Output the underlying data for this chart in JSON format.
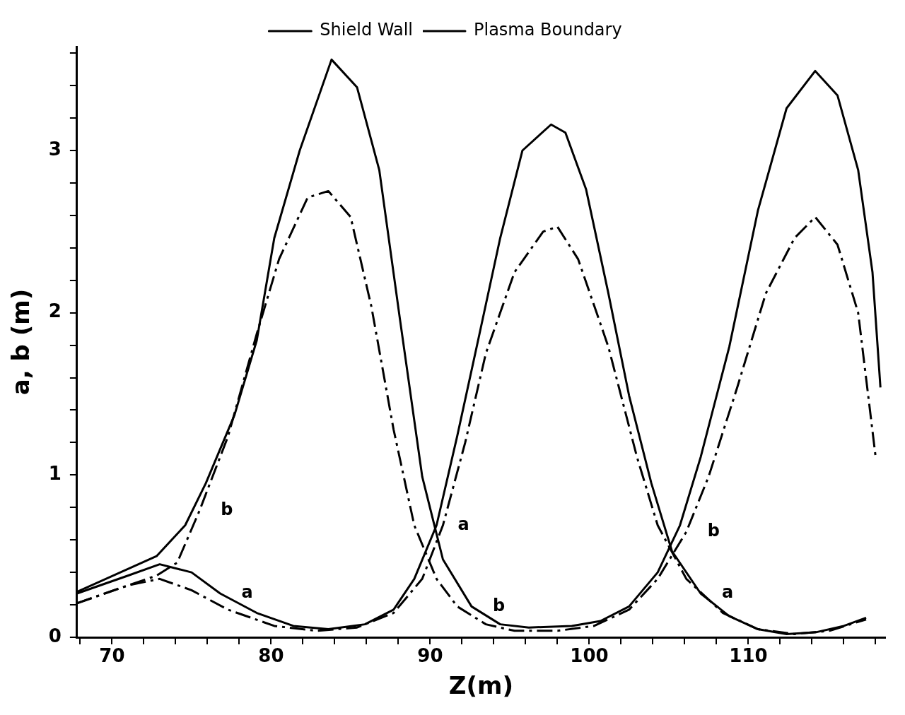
{
  "chart_data": {
    "type": "line",
    "xlabel": "Z(m)",
    "ylabel": "a, b (m)",
    "xlim": [
      67.8,
      118.6
    ],
    "ylim": [
      0,
      3.64
    ],
    "xticks": [
      {
        "value": 68,
        "label": null
      },
      70,
      {
        "value": 72,
        "label": null
      },
      {
        "value": 74,
        "label": null
      },
      {
        "value": 76,
        "label": null
      },
      {
        "value": 78,
        "label": null
      },
      80,
      {
        "value": 82,
        "label": null
      },
      {
        "value": 84,
        "label": null
      },
      {
        "value": 86,
        "label": null
      },
      {
        "value": 88,
        "label": null
      },
      90,
      {
        "value": 92,
        "label": null
      },
      {
        "value": 94,
        "label": null
      },
      {
        "value": 96,
        "label": null
      },
      {
        "value": 98,
        "label": null
      },
      100,
      {
        "value": 102,
        "label": null
      },
      {
        "value": 104,
        "label": null
      },
      {
        "value": 106,
        "label": null
      },
      {
        "value": 108,
        "label": null
      },
      110,
      {
        "value": 112,
        "label": null
      },
      {
        "value": 114,
        "label": null
      },
      {
        "value": 116,
        "label": null
      },
      {
        "value": 118,
        "label": null
      }
    ],
    "yticks": [
      0,
      {
        "value": 0.2,
        "label": null
      },
      {
        "value": 0.4,
        "label": null
      },
      {
        "value": 0.6,
        "label": null
      },
      {
        "value": 0.8,
        "label": null
      },
      1,
      {
        "value": 1.2,
        "label": null
      },
      {
        "value": 1.4,
        "label": null
      },
      {
        "value": 1.6,
        "label": null
      },
      {
        "value": 1.8,
        "label": null
      },
      2,
      {
        "value": 2.2,
        "label": null
      },
      {
        "value": 2.4,
        "label": null
      },
      {
        "value": 2.6,
        "label": null
      },
      {
        "value": 2.8,
        "label": null
      },
      3,
      {
        "value": 3.2,
        "label": null
      },
      {
        "value": 3.4,
        "label": null
      },
      {
        "value": 3.6,
        "label": null
      }
    ],
    "grid": false,
    "legend": "top right",
    "marker": "none",
    "series": [
      {
        "name": "Shield Wall",
        "color": "#000000",
        "line_style": "solid",
        "x": [
          67.8,
          72.8,
          74.6,
          75.9,
          77.7,
          79.1,
          80.2,
          81.8,
          83.8,
          85.4,
          86.8,
          88.1,
          89.5,
          90.8,
          92.6,
          94.4,
          96.2,
          98.9,
          100.7,
          102.5,
          104.3,
          105.7,
          107,
          108.8,
          110.6,
          112.4,
          114.2,
          115.6,
          116.9,
          117.8,
          118.3
        ],
        "values": [
          0.28,
          0.5,
          0.69,
          0.95,
          1.37,
          1.83,
          2.46,
          3.0,
          3.56,
          3.39,
          2.88,
          1.96,
          0.99,
          0.48,
          0.19,
          0.08,
          0.06,
          0.07,
          0.1,
          0.19,
          0.4,
          0.69,
          1.11,
          1.79,
          2.63,
          3.26,
          3.49,
          3.34,
          2.88,
          2.25,
          1.54
        ]
      },
      {
        "color": "#000000",
        "line_style": "solid",
        "x": [
          67.8,
          71,
          73,
          75,
          76.8,
          79.1,
          81.4,
          83.6,
          85.9,
          87.7,
          89,
          90.4,
          91.7,
          93.1,
          94.4,
          95.8,
          97.6,
          98.5,
          99.8,
          101.2,
          102.5,
          103.9,
          105.2,
          107,
          108.8,
          110.6,
          112.4,
          114.2,
          116,
          117.4
        ],
        "values": [
          0.27,
          0.38,
          0.45,
          0.4,
          0.27,
          0.15,
          0.07,
          0.05,
          0.08,
          0.17,
          0.36,
          0.69,
          1.24,
          1.87,
          2.46,
          3.0,
          3.16,
          3.11,
          2.76,
          2.12,
          1.49,
          0.95,
          0.53,
          0.27,
          0.13,
          0.05,
          0.02,
          0.03,
          0.07,
          0.12
        ]
      },
      {
        "name": "Plasma Boundary",
        "color": "#000000",
        "line_style": "dashed",
        "x": [
          67.8,
          72.8,
          74.1,
          75.5,
          77.3,
          79.1,
          80.5,
          82.3,
          83.6,
          85,
          86.3,
          87.7,
          89,
          90.4,
          91.7,
          93.5,
          95.3,
          98,
          100.3,
          102.5,
          104.3,
          106.1,
          107.5,
          109.3,
          111.1,
          112.9,
          114.2,
          115.6,
          116.9,
          118
        ],
        "values": [
          0.21,
          0.38,
          0.46,
          0.78,
          1.24,
          1.87,
          2.33,
          2.71,
          2.75,
          2.59,
          2.04,
          1.28,
          0.69,
          0.36,
          0.19,
          0.08,
          0.04,
          0.04,
          0.07,
          0.17,
          0.36,
          0.65,
          0.99,
          1.54,
          2.12,
          2.46,
          2.59,
          2.42,
          2.0,
          1.11
        ]
      },
      {
        "color": "#000000",
        "line_style": "dashed",
        "x": [
          67.8,
          71,
          73,
          75,
          77.3,
          80.2,
          82.9,
          85.4,
          87.7,
          89.5,
          90.8,
          92.2,
          93.5,
          95.3,
          97.1,
          98,
          99.3,
          101.2,
          103,
          104.3,
          106.1,
          108.4,
          110.6,
          112.9,
          115.1,
          117.4
        ],
        "values": [
          0.21,
          0.32,
          0.36,
          0.29,
          0.17,
          0.07,
          0.04,
          0.06,
          0.15,
          0.36,
          0.69,
          1.2,
          1.75,
          2.25,
          2.5,
          2.53,
          2.33,
          1.79,
          1.11,
          0.69,
          0.36,
          0.15,
          0.05,
          0.02,
          0.04,
          0.11
        ]
      }
    ],
    "annotations": [
      {
        "text": "b",
        "x": 75.5,
        "y": 0.78
      },
      {
        "text": "a",
        "x": 76.8,
        "y": 0.27
      },
      {
        "text": "a",
        "x": 90.4,
        "y": 0.69
      },
      {
        "text": "b",
        "x": 92.6,
        "y": 0.19
      },
      {
        "text": "b",
        "x": 106.1,
        "y": 0.65
      },
      {
        "text": "a",
        "x": 107,
        "y": 0.27
      }
    ]
  }
}
